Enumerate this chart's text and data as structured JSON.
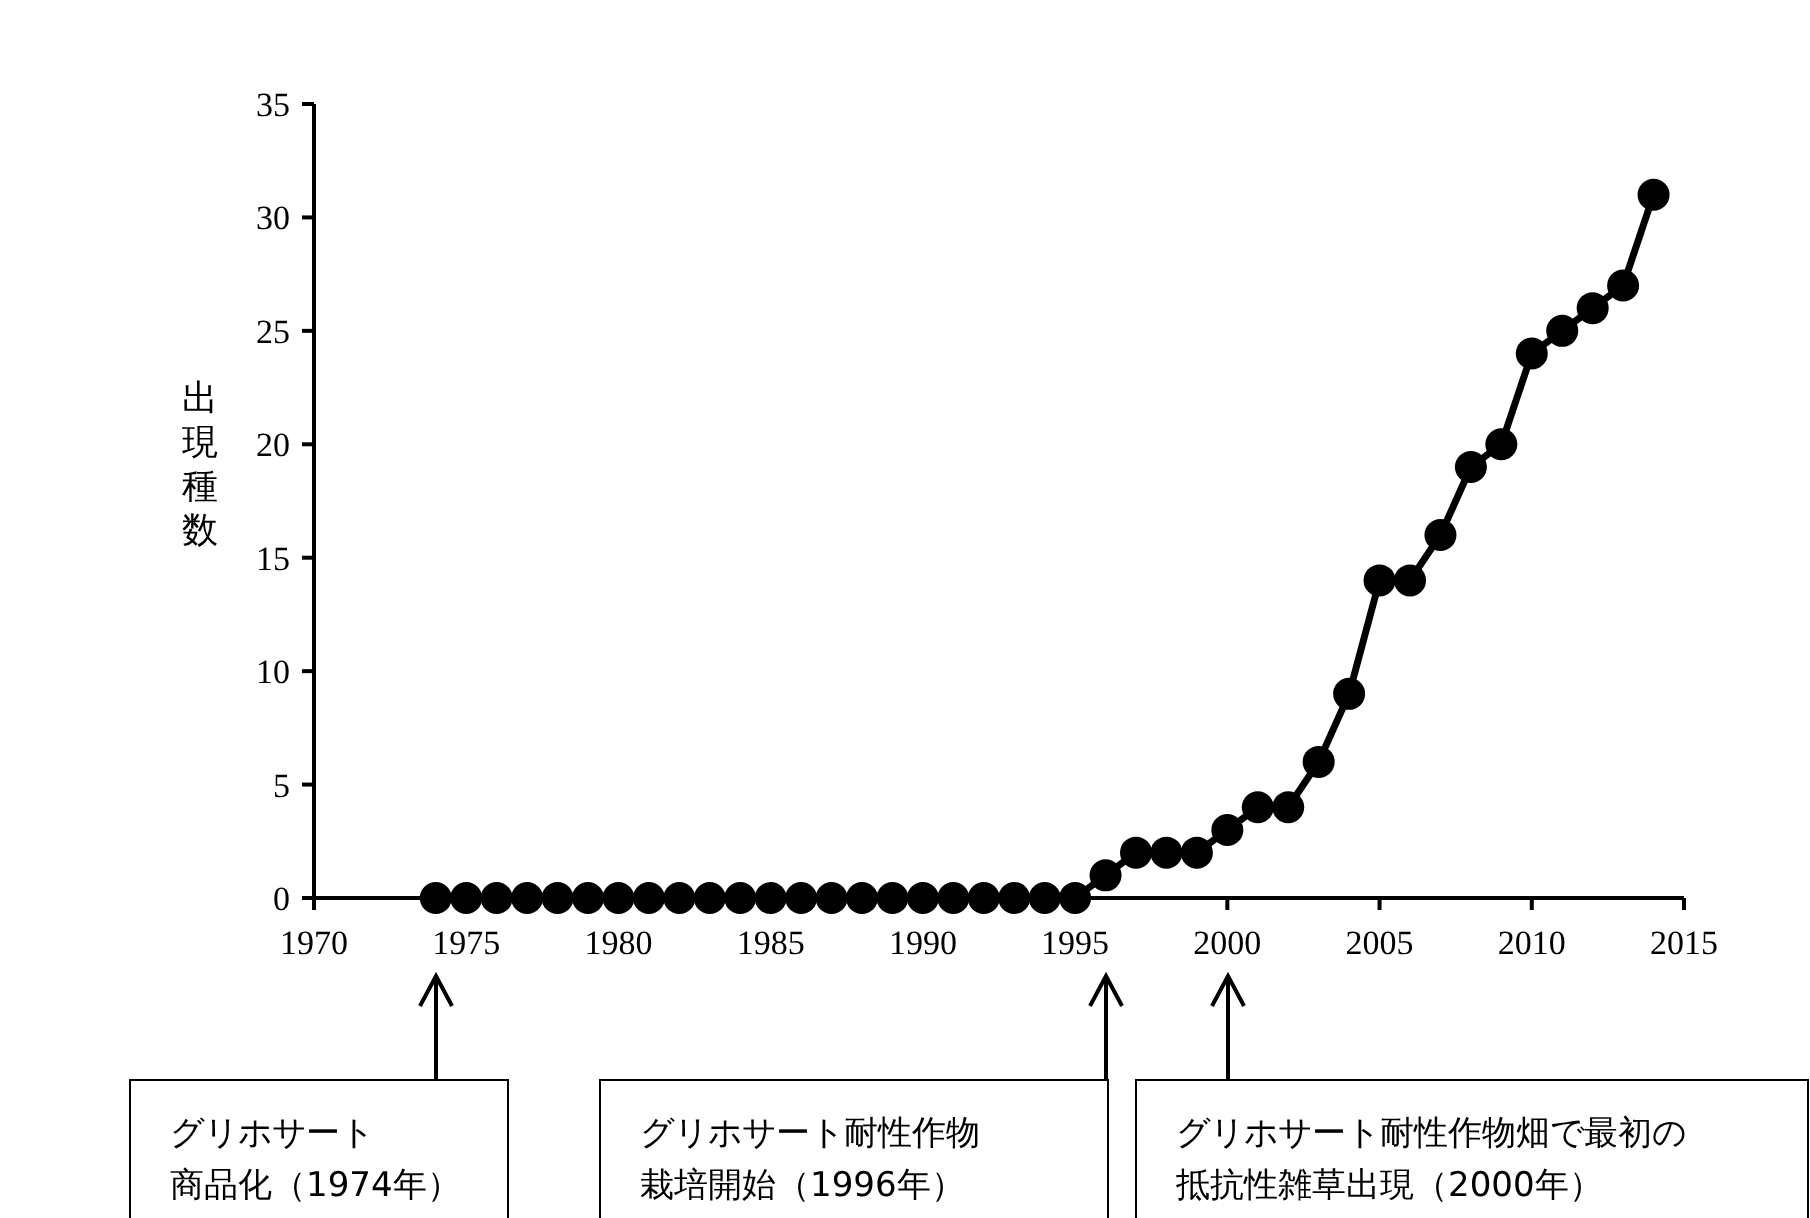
{
  "chart_data": {
    "type": "line",
    "ylabel": "出現種数",
    "x": [
      1974,
      1975,
      1976,
      1977,
      1978,
      1979,
      1980,
      1981,
      1982,
      1983,
      1984,
      1985,
      1986,
      1987,
      1988,
      1989,
      1990,
      1991,
      1992,
      1993,
      1994,
      1995,
      1996,
      1997,
      1998,
      1999,
      2000,
      2001,
      2002,
      2003,
      2004,
      2005,
      2006,
      2007,
      2008,
      2009,
      2010,
      2011,
      2012,
      2013,
      2014
    ],
    "series": [
      {
        "color": "#000000",
        "values": [
          0,
          0,
          0,
          0,
          0,
          0,
          0,
          0,
          0,
          0,
          0,
          0,
          0,
          0,
          0,
          0,
          0,
          0,
          0,
          0,
          0,
          0,
          1,
          2,
          2,
          2,
          3,
          4,
          4,
          6,
          9,
          14,
          14,
          16,
          19,
          20,
          24,
          25,
          26,
          27,
          31
        ]
      }
    ],
    "xlim": [
      1970,
      2015
    ],
    "xticks": [
      1970,
      1975,
      1980,
      1985,
      1990,
      1995,
      2000,
      2005,
      2010,
      2015
    ],
    "ylim": [
      0,
      35
    ],
    "yticks": [
      0,
      5,
      10,
      15,
      20,
      25,
      30,
      35
    ],
    "marker": "circle",
    "line_style": "solid",
    "grid": false,
    "annotations": [
      "グリホサート商品化（1974年）",
      "グリホサート耐性作物栽培開始（1996年）",
      "グリホサート耐性作物畑で最初の抵抗性雑草出現（2000年）"
    ]
  }
}
